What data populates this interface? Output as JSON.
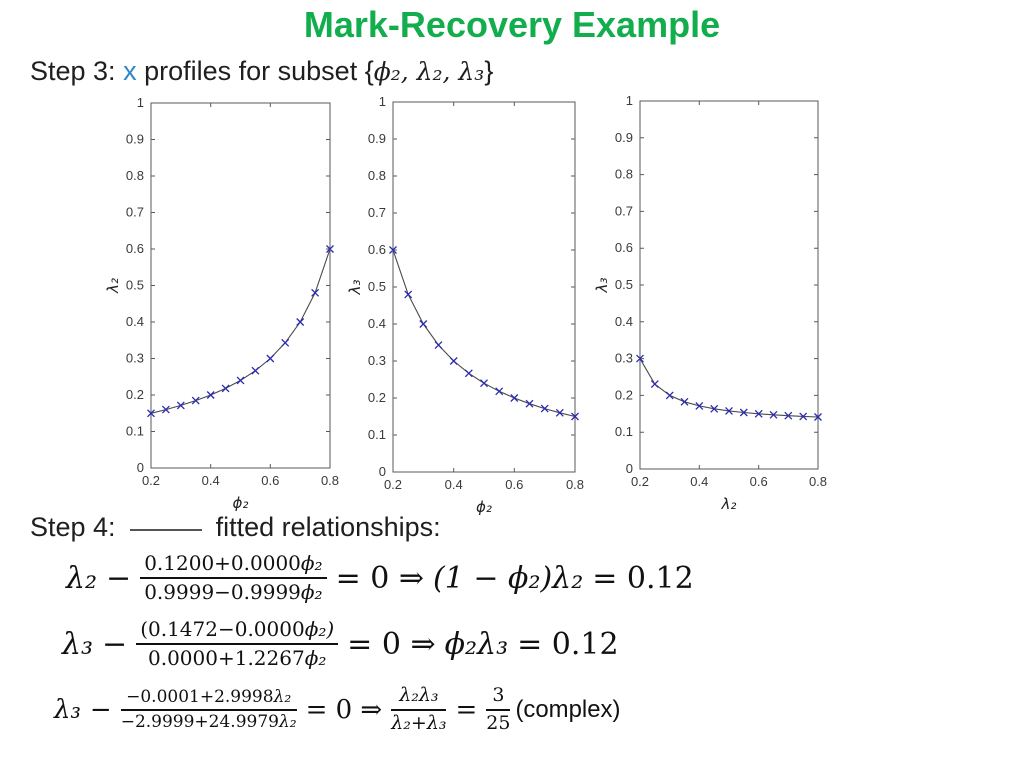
{
  "slide": {
    "title": "Mark-Recovery Example",
    "title_color": "#12AD4C",
    "step3": {
      "prefix": "Step 3:",
      "x": "x",
      "x_color": "#2E86C8",
      "mid": "profiles for subset {",
      "vars": "ϕ₂, λ₂, λ₃",
      "end": "}"
    },
    "step4": {
      "prefix": "Step 4:",
      "suffix": "fitted relationships:",
      "line_swatch_color": "#555555"
    }
  },
  "chart_data": [
    {
      "type": "line",
      "xlabel": "ϕ₂",
      "ylabel": "λ₂",
      "xlim": [
        0.2,
        0.8
      ],
      "ylim": [
        0,
        1
      ],
      "xticks": [
        0.2,
        0.4,
        0.6,
        0.8
      ],
      "xticklabels": [
        "0.2",
        "0.4",
        "0.6",
        "0.8"
      ],
      "yticks": [
        0,
        0.1,
        0.2,
        0.3,
        0.4,
        0.5,
        0.6,
        0.7,
        0.8,
        0.9,
        1
      ],
      "yticklabels": [
        "0",
        "0.1",
        "0.2",
        "0.3",
        "0.4",
        "0.5",
        "0.6",
        "0.7",
        "0.8",
        "0.9",
        "1"
      ],
      "marker": "x",
      "grid": false,
      "line_color": "#4a4a4a",
      "marker_color": "#2b2bb0",
      "axis_color": "#5a5a5a",
      "tick_label_color": "#3a3a3a",
      "x": [
        0.2,
        0.25,
        0.3,
        0.35,
        0.4,
        0.45,
        0.5,
        0.55,
        0.6,
        0.65,
        0.7,
        0.75,
        0.8
      ],
      "y": [
        0.15,
        0.16,
        0.1714,
        0.1846,
        0.2,
        0.2182,
        0.24,
        0.2667,
        0.3,
        0.3429,
        0.4,
        0.48,
        0.6
      ]
    },
    {
      "type": "line",
      "xlabel": "ϕ₂",
      "ylabel": "λ₃",
      "xlim": [
        0.2,
        0.8
      ],
      "ylim": [
        0,
        1
      ],
      "xticks": [
        0.2,
        0.4,
        0.6,
        0.8
      ],
      "xticklabels": [
        "0.2",
        "0.4",
        "0.6",
        "0.8"
      ],
      "yticks": [
        0,
        0.1,
        0.2,
        0.3,
        0.4,
        0.5,
        0.6,
        0.7,
        0.8,
        0.9,
        1
      ],
      "yticklabels": [
        "0",
        "0.1",
        "0.2",
        "0.3",
        "0.4",
        "0.5",
        "0.6",
        "0.7",
        "0.8",
        "0.9",
        "1"
      ],
      "marker": "x",
      "grid": false,
      "line_color": "#4a4a4a",
      "marker_color": "#2b2bb0",
      "axis_color": "#5a5a5a",
      "tick_label_color": "#3a3a3a",
      "x": [
        0.2,
        0.25,
        0.3,
        0.35,
        0.4,
        0.45,
        0.5,
        0.55,
        0.6,
        0.65,
        0.7,
        0.75,
        0.8
      ],
      "y": [
        0.6,
        0.48,
        0.4,
        0.3429,
        0.3,
        0.2667,
        0.24,
        0.2182,
        0.2,
        0.1846,
        0.1714,
        0.16,
        0.15
      ]
    },
    {
      "type": "line",
      "xlabel": "λ₂",
      "ylabel": "λ₃",
      "xlim": [
        0.2,
        0.8
      ],
      "ylim": [
        0,
        1
      ],
      "xticks": [
        0.2,
        0.4,
        0.6,
        0.8
      ],
      "xticklabels": [
        "0.2",
        "0.4",
        "0.6",
        "0.8"
      ],
      "yticks": [
        0,
        0.1,
        0.2,
        0.3,
        0.4,
        0.5,
        0.6,
        0.7,
        0.8,
        0.9,
        1
      ],
      "yticklabels": [
        "0",
        "0.1",
        "0.2",
        "0.3",
        "0.4",
        "0.5",
        "0.6",
        "0.7",
        "0.8",
        "0.9",
        "1"
      ],
      "marker": "x",
      "grid": false,
      "line_color": "#4a4a4a",
      "marker_color": "#2b2bb0",
      "axis_color": "#5a5a5a",
      "tick_label_color": "#3a3a3a",
      "x": [
        0.2,
        0.25,
        0.3,
        0.35,
        0.4,
        0.45,
        0.5,
        0.55,
        0.6,
        0.65,
        0.7,
        0.75,
        0.8
      ],
      "y": [
        0.3,
        0.2308,
        0.2,
        0.1826,
        0.1714,
        0.1636,
        0.1579,
        0.1535,
        0.15,
        0.1472,
        0.1448,
        0.1429,
        0.1412
      ]
    }
  ],
  "equations": {
    "eq1": {
      "lhs": "λ₂",
      "minus": "−",
      "num_coef": "0.1200+0.0000",
      "num_var": "ϕ₂",
      "den_coef": "0.9999−0.9999",
      "den_var": "ϕ₂",
      "mid": "= 0 ⇒",
      "rhs_expr": "(1 − ϕ₂)λ₂",
      "rhs_eq": "= 0.12"
    },
    "eq2": {
      "lhs": "λ₃",
      "minus": "−",
      "num_coef": "(0.1472−0.0000",
      "num_var": "ϕ₂)",
      "den_coef": "0.0000+1.2267",
      "den_var": "ϕ₂",
      "mid": "= 0 ⇒",
      "rhs_expr": "ϕ₂λ₃",
      "rhs_eq": "= 0.12"
    },
    "eq3": {
      "lhs": "λ₃",
      "minus": "−",
      "num_coef": "−0.0001+2.9998",
      "num_var": "λ₂",
      "den_coef": "−2.9999+24.9979",
      "den_var": "λ₂",
      "mid": "= 0 ⇒",
      "rhs_frac_num": "λ₂λ₃",
      "rhs_frac_den": "λ₂+λ₃",
      "eq_sign": "=",
      "ratio_num": "3",
      "ratio_den": "25",
      "note": "(complex)"
    }
  }
}
